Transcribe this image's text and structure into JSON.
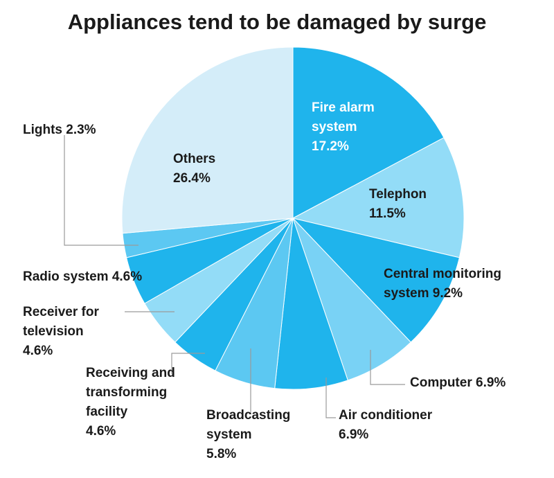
{
  "chart_data": {
    "type": "pie",
    "title": "Appliances tend to be damaged by surge",
    "slices": [
      {
        "label_lines": [
          "Fire alarm",
          "system",
          "17.2%"
        ],
        "value": 17.2,
        "color": "#1fb4ec"
      },
      {
        "label_lines": [
          "Telephon",
          "11.5%"
        ],
        "value": 11.5,
        "color": "#93dcf7"
      },
      {
        "label_lines": [
          "Central monitoring",
          "system 9.2%"
        ],
        "value": 9.2,
        "color": "#1fb4ec"
      },
      {
        "label_lines": [
          "Computer 6.9%"
        ],
        "value": 6.9,
        "color": "#79d2f5"
      },
      {
        "label_lines": [
          "Air conditioner",
          "6.9%"
        ],
        "value": 6.9,
        "color": "#1fb4ec"
      },
      {
        "label_lines": [
          "Broadcasting",
          "system",
          "5.8%"
        ],
        "value": 5.8,
        "color": "#5cc8f2"
      },
      {
        "label_lines": [
          "Receiving and",
          "transforming",
          "facility",
          "4.6%"
        ],
        "value": 4.6,
        "color": "#1fb4ec"
      },
      {
        "label_lines": [
          "Receiver for",
          "television",
          "4.6%"
        ],
        "value": 4.6,
        "color": "#93dcf7"
      },
      {
        "label_lines": [
          "Radio system 4.6%"
        ],
        "value": 4.6,
        "color": "#1fb4ec"
      },
      {
        "label_lines": [
          "Lights 2.3%"
        ],
        "value": 2.3,
        "color": "#5cc8f2"
      },
      {
        "label_lines": [
          "Others",
          "26.4%"
        ],
        "value": 26.4,
        "color": "#d4edf9"
      }
    ]
  }
}
